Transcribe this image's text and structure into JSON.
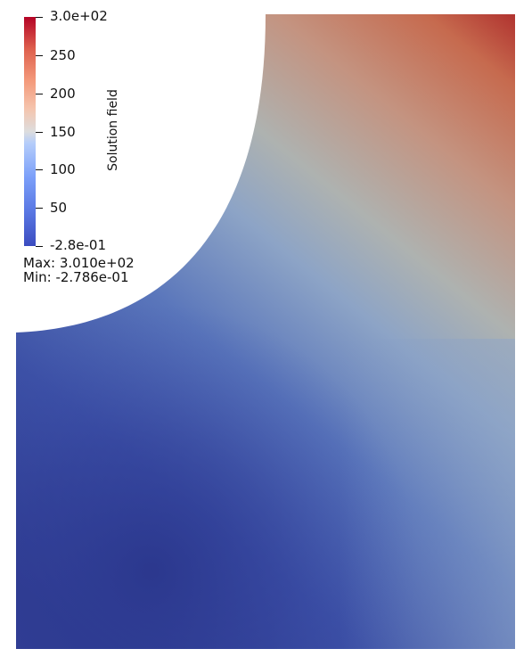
{
  "colorbar": {
    "title": "Solution field",
    "ticks": [
      {
        "value": "3.0e+02"
      },
      {
        "value": "250"
      },
      {
        "value": "200"
      },
      {
        "value": "150"
      },
      {
        "value": "100"
      },
      {
        "value": "50"
      },
      {
        "value": "-2.8e-01"
      }
    ],
    "colormap": "coolwarm",
    "colors": {
      "low": "#3b4cc0",
      "mid": "#dddddd",
      "high": "#b40426"
    }
  },
  "stats": {
    "max_label": "Max: 3.010e+02",
    "min_label": "Min: -2.786e-01"
  }
}
